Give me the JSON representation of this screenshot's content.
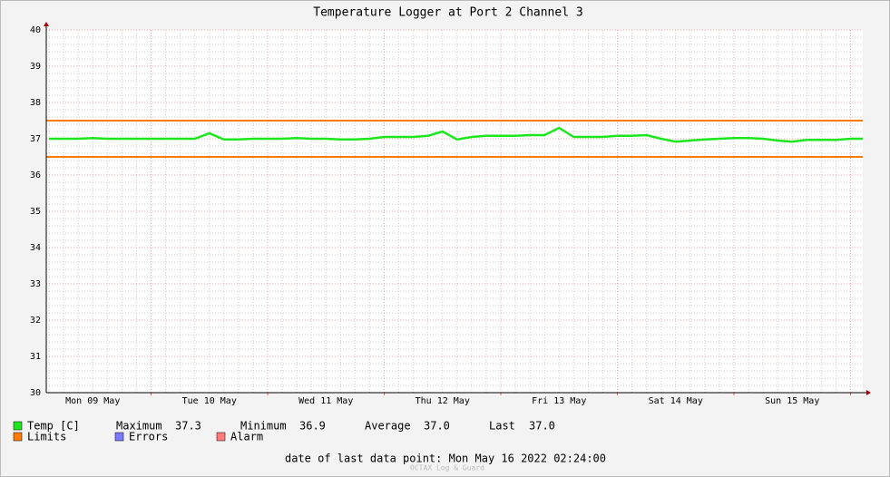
{
  "chart_data": {
    "type": "line",
    "title": "Temperature Logger at Port 2 Channel 3",
    "categories": [
      null,
      null,
      null,
      "Mon 09 May",
      null,
      null,
      null,
      null,
      null,
      null,
      null,
      "Tue 10 May",
      null,
      null,
      null,
      null,
      null,
      null,
      null,
      "Wed 11 May",
      null,
      null,
      null,
      null,
      null,
      null,
      null,
      "Thu 12 May",
      null,
      null,
      null,
      null,
      null,
      null,
      null,
      "Fri 13 May",
      null,
      null,
      null,
      null,
      null,
      null,
      null,
      "Sat 14 May",
      null,
      null,
      null,
      null,
      null,
      null,
      null,
      "Sun 15 May",
      null,
      null,
      null,
      null,
      null
    ],
    "series": [
      {
        "name": "Temp [C]",
        "color": "#1ee61e",
        "values": [
          37.0,
          37.0,
          37.0,
          37.02,
          37.0,
          37.0,
          37.0,
          37.0,
          37.0,
          37.0,
          37.0,
          37.15,
          36.98,
          36.98,
          37.0,
          37.0,
          37.0,
          37.02,
          37.0,
          37.0,
          36.98,
          36.98,
          37.0,
          37.05,
          37.05,
          37.05,
          37.08,
          37.2,
          36.98,
          37.05,
          37.08,
          37.08,
          37.08,
          37.1,
          37.1,
          37.3,
          37.05,
          37.05,
          37.05,
          37.08,
          37.08,
          37.1,
          37.0,
          36.92,
          36.95,
          36.98,
          37.0,
          37.02,
          37.02,
          37.0,
          36.95,
          36.92,
          36.97,
          36.97,
          36.97,
          37.0,
          37.0
        ]
      }
    ],
    "limits": {
      "name": "Limits",
      "color": "#ff7a00",
      "values": [
        37.5,
        36.5
      ]
    },
    "legend_items": [
      {
        "name": "Errors",
        "color": "#7b7bff"
      },
      {
        "name": "Alarm",
        "color": "#ff7b7b"
      }
    ],
    "stats": {
      "labels": [
        "Maximum",
        "Minimum",
        "Average",
        "Last"
      ],
      "values": [
        37.3,
        36.9,
        37.0,
        37.0
      ],
      "value_labels": [
        "37.3",
        "36.9",
        "37.0",
        "37.0"
      ]
    },
    "ylim": [
      30,
      40
    ],
    "yticks": [
      30,
      31,
      32,
      33,
      34,
      35,
      36,
      37,
      38,
      39,
      40
    ],
    "grid": true,
    "footer": "date of last data point:  Mon May 16 2022 02:24:00",
    "watermark": "OCTAX Log & Guard"
  }
}
